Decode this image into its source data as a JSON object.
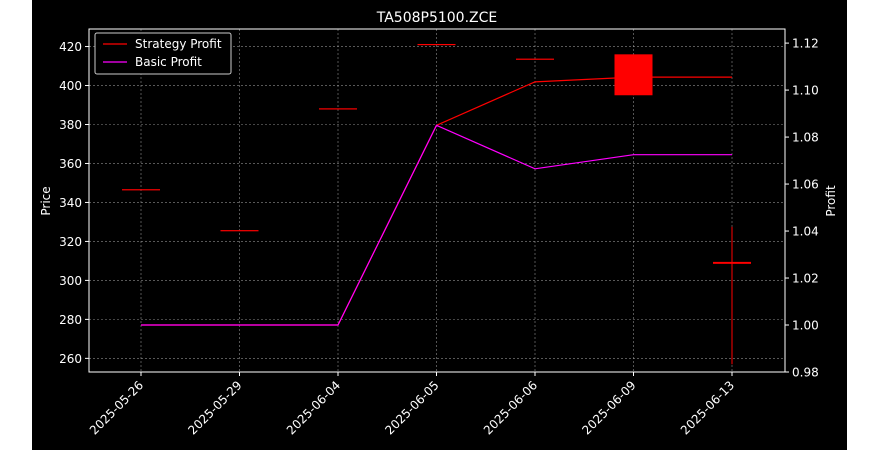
{
  "chart_data": {
    "type": "candlestick",
    "title": "TA508P5100.ZCE",
    "ylabel": "Price",
    "ylabel_right": "Profit",
    "categories": [
      "2025-05-26",
      "2025-05-29",
      "2025-06-04",
      "2025-06-05",
      "2025-06-06",
      "2025-06-09",
      "2025-06-13"
    ],
    "ylim": [
      253,
      429
    ],
    "y_ticks": [
      260,
      280,
      300,
      320,
      340,
      360,
      380,
      400,
      420
    ],
    "y2lim": [
      0.98,
      1.126
    ],
    "y2_ticks": [
      0.98,
      1.0,
      1.02,
      1.04,
      1.06,
      1.08,
      1.1,
      1.12
    ],
    "grid": true,
    "legend_position": "top-left",
    "candles": [
      {
        "date": "2025-05-26",
        "open": 346.5,
        "high": 346.5,
        "low": 346.5,
        "close": 346.5
      },
      {
        "date": "2025-05-29",
        "open": 325.5,
        "high": 325.5,
        "low": 325.5,
        "close": 325.5
      },
      {
        "date": "2025-06-04",
        "open": 388,
        "high": 388,
        "low": 388,
        "close": 388
      },
      {
        "date": "2025-06-05",
        "open": 421,
        "high": 421,
        "low": 421,
        "close": 421
      },
      {
        "date": "2025-06-06",
        "open": 413.5,
        "high": 413.5,
        "low": 413.5,
        "close": 413.5
      },
      {
        "date": "2025-06-09",
        "open": 416,
        "high": 416,
        "low": 395,
        "close": 395
      },
      {
        "date": "2025-06-13",
        "open": 309.5,
        "high": 327.5,
        "low": 257,
        "close": 308.5
      }
    ],
    "series": [
      {
        "name": "Strategy Profit",
        "color": "#ff0000",
        "values": [
          1.0,
          1.0,
          1.0,
          1.085,
          1.1035,
          1.1055,
          1.1055
        ]
      },
      {
        "name": "Basic Profit",
        "color": "#ff00ff",
        "values": [
          1.0,
          1.0,
          1.0,
          1.085,
          1.0665,
          1.0725,
          1.0725
        ]
      }
    ],
    "candle_color": "#ff0000"
  }
}
